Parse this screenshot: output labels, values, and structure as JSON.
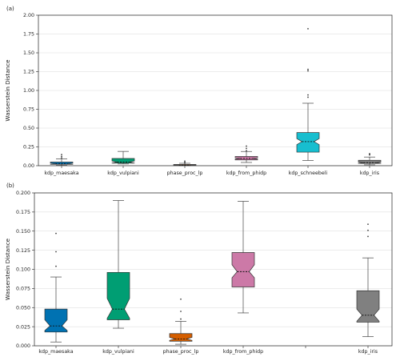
{
  "chart_data": [
    {
      "panel_label": "(a)",
      "type": "box",
      "ylabel": "Wasserstein Distance",
      "ylim": [
        0,
        2.0
      ],
      "yticks": [
        "0.00",
        "0.25",
        "0.50",
        "0.75",
        "1.00",
        "1.25",
        "1.50",
        "1.75",
        "2.00"
      ],
      "ytick_values": [
        0,
        0.25,
        0.5,
        0.75,
        1.0,
        1.25,
        1.5,
        1.75,
        2.0
      ],
      "grid": "horizontal",
      "categories": [
        "kdp_maesaka",
        "kdp_vulpiani",
        "phase_proc_lp",
        "kdp_from_phidp",
        "kdp_schneebeli",
        "kdp_iris"
      ],
      "boxes": [
        {
          "name": "kdp_maesaka",
          "color": "#0072B2",
          "whislo": 0.005,
          "q1": 0.018,
          "med": 0.026,
          "q3": 0.048,
          "whishi": 0.09,
          "notch_lo": 0.02,
          "notch_hi": 0.034,
          "fliers": [
            0.104,
            0.123,
            0.147
          ]
        },
        {
          "name": "kdp_vulpiani",
          "color": "#009E73",
          "whislo": 0.023,
          "q1": 0.034,
          "med": 0.048,
          "q3": 0.096,
          "whishi": 0.19,
          "notch_lo": 0.036,
          "notch_hi": 0.062,
          "fliers": []
        },
        {
          "name": "phase_proc_lp",
          "color": "#D55E00",
          "whislo": 0.002,
          "q1": 0.006,
          "med": 0.009,
          "q3": 0.016,
          "whishi": 0.032,
          "notch_lo": 0.007,
          "notch_hi": 0.011,
          "fliers": [
            0.035,
            0.045,
            0.061
          ]
        },
        {
          "name": "kdp_from_phidp",
          "color": "#CC79A7",
          "whislo": 0.043,
          "q1": 0.077,
          "med": 0.097,
          "q3": 0.122,
          "whishi": 0.189,
          "notch_lo": 0.089,
          "notch_hi": 0.106,
          "fliers": [
            0.2,
            0.23,
            0.26
          ]
        },
        {
          "name": "kdp_schneebeli",
          "color": "#17BECF",
          "whislo": 0.07,
          "q1": 0.18,
          "med": 0.32,
          "q3": 0.44,
          "whishi": 0.83,
          "notch_lo": 0.28,
          "notch_hi": 0.36,
          "fliers": [
            0.91,
            0.94,
            1.26,
            1.28,
            1.82
          ]
        },
        {
          "name": "kdp_iris",
          "color": "#808080",
          "whislo": 0.012,
          "q1": 0.031,
          "med": 0.04,
          "q3": 0.072,
          "whishi": 0.115,
          "notch_lo": 0.032,
          "notch_hi": 0.048,
          "fliers": [
            0.143,
            0.151,
            0.159
          ]
        }
      ]
    },
    {
      "panel_label": "(b)",
      "type": "box",
      "ylabel": "Wasserstein Distance",
      "ylim": [
        0,
        0.2
      ],
      "yticks": [
        "0.000",
        "0.025",
        "0.050",
        "0.075",
        "0.100",
        "0.125",
        "0.150",
        "0.175",
        "0.200"
      ],
      "ytick_values": [
        0,
        0.025,
        0.05,
        0.075,
        0.1,
        0.125,
        0.15,
        0.175,
        0.2
      ],
      "grid": "horizontal",
      "categories": [
        "kdp_maesaka",
        "kdp_vulpiani",
        "phase_proc_lp",
        "kdp_from_phidp",
        "",
        "kdp_iris"
      ],
      "boxes": [
        {
          "name": "kdp_maesaka",
          "color": "#0072B2",
          "whislo": 0.005,
          "q1": 0.018,
          "med": 0.026,
          "q3": 0.048,
          "whishi": 0.09,
          "notch_lo": 0.02,
          "notch_hi": 0.034,
          "fliers": [
            0.104,
            0.123,
            0.147
          ]
        },
        {
          "name": "kdp_vulpiani",
          "color": "#009E73",
          "whislo": 0.023,
          "q1": 0.034,
          "med": 0.048,
          "q3": 0.096,
          "whishi": 0.19,
          "notch_lo": 0.036,
          "notch_hi": 0.062,
          "fliers": []
        },
        {
          "name": "phase_proc_lp",
          "color": "#D55E00",
          "whislo": 0.002,
          "q1": 0.006,
          "med": 0.009,
          "q3": 0.016,
          "whishi": 0.032,
          "notch_lo": 0.007,
          "notch_hi": 0.011,
          "fliers": [
            0.035,
            0.045,
            0.061
          ]
        },
        {
          "name": "kdp_from_phidp",
          "color": "#CC79A7",
          "whislo": 0.043,
          "q1": 0.077,
          "med": 0.097,
          "q3": 0.122,
          "whishi": 0.189,
          "notch_lo": 0.089,
          "notch_hi": 0.106,
          "fliers": []
        },
        {
          "name": "kdp_iris",
          "color": "#808080",
          "whislo": 0.012,
          "q1": 0.031,
          "med": 0.04,
          "q3": 0.072,
          "whishi": 0.115,
          "notch_lo": 0.032,
          "notch_hi": 0.048,
          "fliers": [
            0.143,
            0.151,
            0.159
          ]
        }
      ]
    }
  ]
}
